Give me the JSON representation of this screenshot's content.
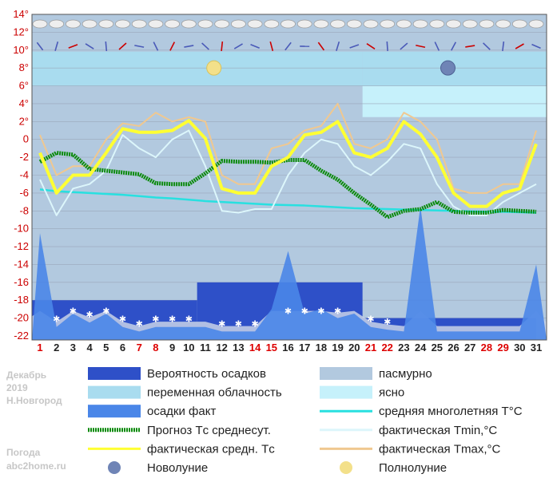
{
  "chart_data": {
    "type": "line",
    "month_label": "Декабрь",
    "year_label": "2019",
    "city_label": "Н.Новгород",
    "site_line1": "Погода",
    "site_line2": "abc2home.ru",
    "x": [
      1,
      2,
      3,
      4,
      5,
      6,
      7,
      8,
      9,
      10,
      11,
      12,
      13,
      14,
      15,
      16,
      17,
      18,
      19,
      20,
      21,
      22,
      23,
      24,
      25,
      26,
      27,
      28,
      29,
      30,
      31
    ],
    "x_tick_labels": [
      "1",
      "2",
      "3",
      "4",
      "5",
      "6",
      "7",
      "8",
      "9",
      "10",
      "11",
      "12",
      "13",
      "14",
      "15",
      "16",
      "17",
      "18",
      "19",
      "20",
      "21",
      "22",
      "23",
      "24",
      "25",
      "26",
      "27",
      "28",
      "29",
      "30",
      "31"
    ],
    "red_days": [
      1,
      7,
      8,
      14,
      15,
      21,
      22,
      28,
      29
    ],
    "ylim": [
      -22,
      14
    ],
    "y_ticks": [
      "14°",
      "12°",
      "10°",
      "8°",
      "6°",
      "4°",
      "2°",
      "0",
      "-2",
      "-4",
      "-6",
      "-8",
      "-10",
      "-12",
      "-14",
      "-16",
      "-18",
      "-20",
      "-22"
    ],
    "colors": {
      "probability": "#2e50c8",
      "variable_cloud": "#a9dcef",
      "overcast": "#b2c9df",
      "clear": "#c6f1fb",
      "precip_fact": "#4a86e8",
      "forecast_mean": "#0c8a0c",
      "actual_mean": "#ffff33",
      "climate_mean": "#28e0e0",
      "tmin": "#dcf6fb",
      "tmax": "#f0c890"
    },
    "series": [
      {
        "name": "Прогноз Tс среднесут.",
        "values": [
          -2.5,
          -1.5,
          -1.7,
          -3.3,
          -3.5,
          -3.7,
          -3.9,
          -4.9,
          -5.0,
          -5.0,
          -3.8,
          -2.4,
          -2.5,
          -2.5,
          -2.6,
          -2.3,
          -2.3,
          -3.5,
          -4.5,
          -6.0,
          -7.3,
          -8.7,
          -8.0,
          -7.8,
          -7.0,
          -8.1,
          -8.2,
          -8.2,
          -7.9,
          -8.0,
          -8.1
        ]
      },
      {
        "name": "фактическая средн. Tс",
        "values": [
          -1.5,
          -6.0,
          -4.0,
          -4.0,
          -1.5,
          1.2,
          0.8,
          0.8,
          1.0,
          2.1,
          0.1,
          -5.5,
          -6.0,
          -6.0,
          -3.0,
          -2.0,
          0.5,
          0.8,
          2.0,
          -1.5,
          -2.0,
          -1.0,
          2.0,
          0.6,
          -2.0,
          -6.0,
          -7.5,
          -7.5,
          -6.0,
          -5.5,
          -0.5
        ]
      },
      {
        "name": "средняя многолетняя T°C",
        "values": [
          -5.6,
          -5.8,
          -5.9,
          -6.0,
          -6.1,
          -6.2,
          -6.35,
          -6.5,
          -6.6,
          -6.75,
          -6.9,
          -7.0,
          -7.1,
          -7.2,
          -7.3,
          -7.35,
          -7.4,
          -7.5,
          -7.6,
          -7.7,
          -7.75,
          -7.8,
          -7.85,
          -7.9,
          -7.95,
          -8.0,
          -8.05,
          -8.1,
          -8.1,
          -8.15,
          -8.2
        ]
      },
      {
        "name": "фактическая Tmin,°C",
        "values": [
          -4.5,
          -8.5,
          -5.5,
          -5.0,
          -3.5,
          0.5,
          -1.0,
          -2.0,
          0.0,
          1.0,
          -3.0,
          -8.0,
          -8.2,
          -7.8,
          -7.8,
          -4.0,
          -1.5,
          0.0,
          -0.5,
          -3.0,
          -4.0,
          -2.5,
          -0.5,
          -1.0,
          -5.0,
          -7.5,
          -8.5,
          -8.5,
          -7.0,
          -6.0,
          -5.0
        ]
      },
      {
        "name": "фактическая Tmax,°C",
        "values": [
          0.5,
          -4.0,
          -3.0,
          -3.0,
          0.0,
          1.8,
          1.5,
          3.0,
          2.0,
          2.5,
          2.0,
          -4.0,
          -5.0,
          -5.0,
          -1.0,
          -0.5,
          1.0,
          1.5,
          4.0,
          -0.5,
          -1.0,
          0.0,
          3.0,
          2.0,
          0.0,
          -5.5,
          -6.0,
          -6.0,
          -5.0,
          -5.0,
          1.0
        ]
      },
      {
        "name": "осадки факт",
        "values": [
          -10.5,
          -21.0,
          -19.5,
          -20.5,
          -19.5,
          -21.0,
          -21.5,
          -21.0,
          -21.0,
          -21.0,
          -21.0,
          -21.5,
          -21.5,
          -21.5,
          -19.0,
          -12.5,
          -19.5,
          -19.0,
          -20.0,
          -19.5,
          -21.0,
          -21.3,
          -21.5,
          -7.5,
          -21.5,
          -21.5,
          -21.5,
          -21.5,
          -21.5,
          -21.5,
          -14.0
        ]
      }
    ],
    "bands": {
      "probability": [
        {
          "from": 1,
          "to": 11,
          "top": -18
        },
        {
          "from": 11,
          "to": 21,
          "top": -16
        },
        {
          "from": 21,
          "to": 31.5,
          "top": -20
        }
      ],
      "overcast": [
        {
          "from": 1,
          "to": 11,
          "top": -19.5
        },
        {
          "from": 11,
          "to": 21,
          "top": -21
        },
        {
          "from": 21,
          "to": 31.5,
          "top": -21
        }
      ]
    },
    "sky_split_day": 21,
    "full_moon_day": 12,
    "new_moon_day": 26,
    "legend": [
      {
        "key": "probability",
        "label": "Вероятность осадков",
        "kind": "box"
      },
      {
        "key": "overcast",
        "label": "пасмурно",
        "kind": "box"
      },
      {
        "key": "variable_cloud",
        "label": "переменная облачность",
        "kind": "box"
      },
      {
        "key": "clear",
        "label": "ясно",
        "kind": "box"
      },
      {
        "key": "precip_fact",
        "label": "осадки факт",
        "kind": "box"
      },
      {
        "key": "climate_mean",
        "label": "средняя многолетняя T°C",
        "kind": "line"
      },
      {
        "key": "forecast_mean",
        "label": "Прогноз Tс среднесут.",
        "kind": "dotted"
      },
      {
        "key": "tmin",
        "label": "фактическая Tmin,°C",
        "kind": "line"
      },
      {
        "key": "actual_mean",
        "label": "фактическая средн. Tс",
        "kind": "line"
      },
      {
        "key": "tmax",
        "label": "фактическая Tmax,°C",
        "kind": "line"
      },
      {
        "key": "new_moon",
        "label": "Новолуние",
        "kind": "newmoon"
      },
      {
        "key": "full_moon",
        "label": "Полнолуние",
        "kind": "fullmoon"
      }
    ]
  }
}
